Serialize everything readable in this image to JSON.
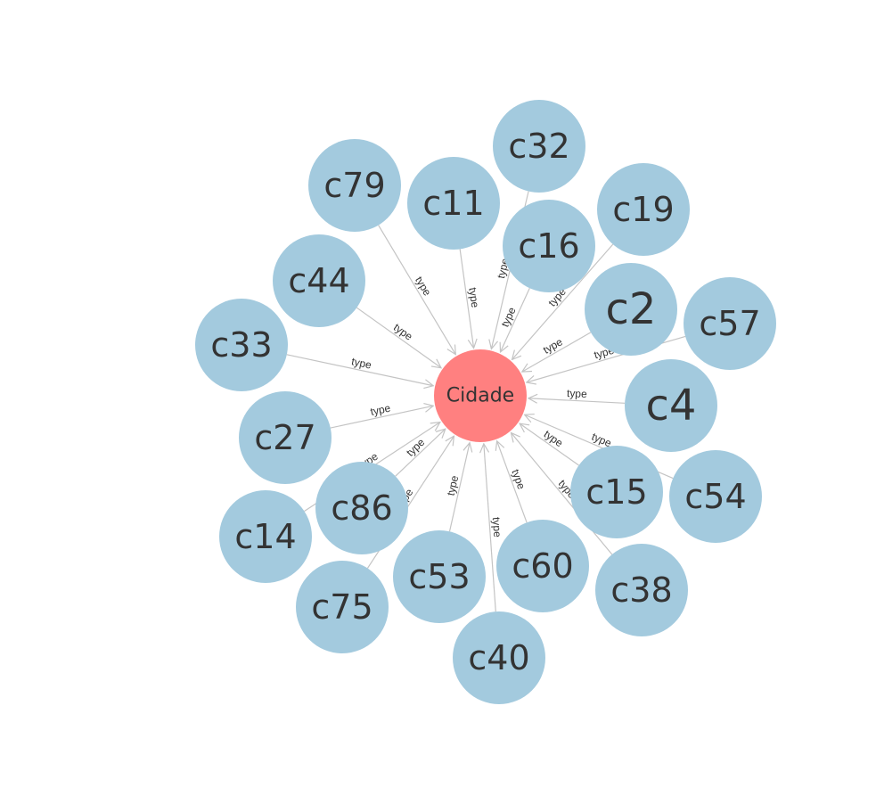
{
  "graph": {
    "center": {
      "id": "cidade",
      "label": "Cidade",
      "color": "#ff8080"
    },
    "node_color": "#a3cade",
    "edge_color": "#c4c4c4",
    "text_color": "#333333",
    "edge_label": "type",
    "nodes": [
      {
        "id": "c79",
        "label": "c79"
      },
      {
        "id": "c11",
        "label": "c11"
      },
      {
        "id": "c32",
        "label": "c32"
      },
      {
        "id": "c16",
        "label": "c16"
      },
      {
        "id": "c19",
        "label": "c19"
      },
      {
        "id": "c2",
        "label": "c2"
      },
      {
        "id": "c57",
        "label": "c57"
      },
      {
        "id": "c44",
        "label": "c44"
      },
      {
        "id": "c33",
        "label": "c33"
      },
      {
        "id": "c27",
        "label": "c27"
      },
      {
        "id": "c4",
        "label": "c4"
      },
      {
        "id": "c54",
        "label": "c54"
      },
      {
        "id": "c15",
        "label": "c15"
      },
      {
        "id": "c86",
        "label": "c86"
      },
      {
        "id": "c14",
        "label": "c14"
      },
      {
        "id": "c75",
        "label": "c75"
      },
      {
        "id": "c53",
        "label": "c53"
      },
      {
        "id": "c60",
        "label": "c60"
      },
      {
        "id": "c38",
        "label": "c38"
      },
      {
        "id": "c40",
        "label": "c40"
      }
    ]
  }
}
